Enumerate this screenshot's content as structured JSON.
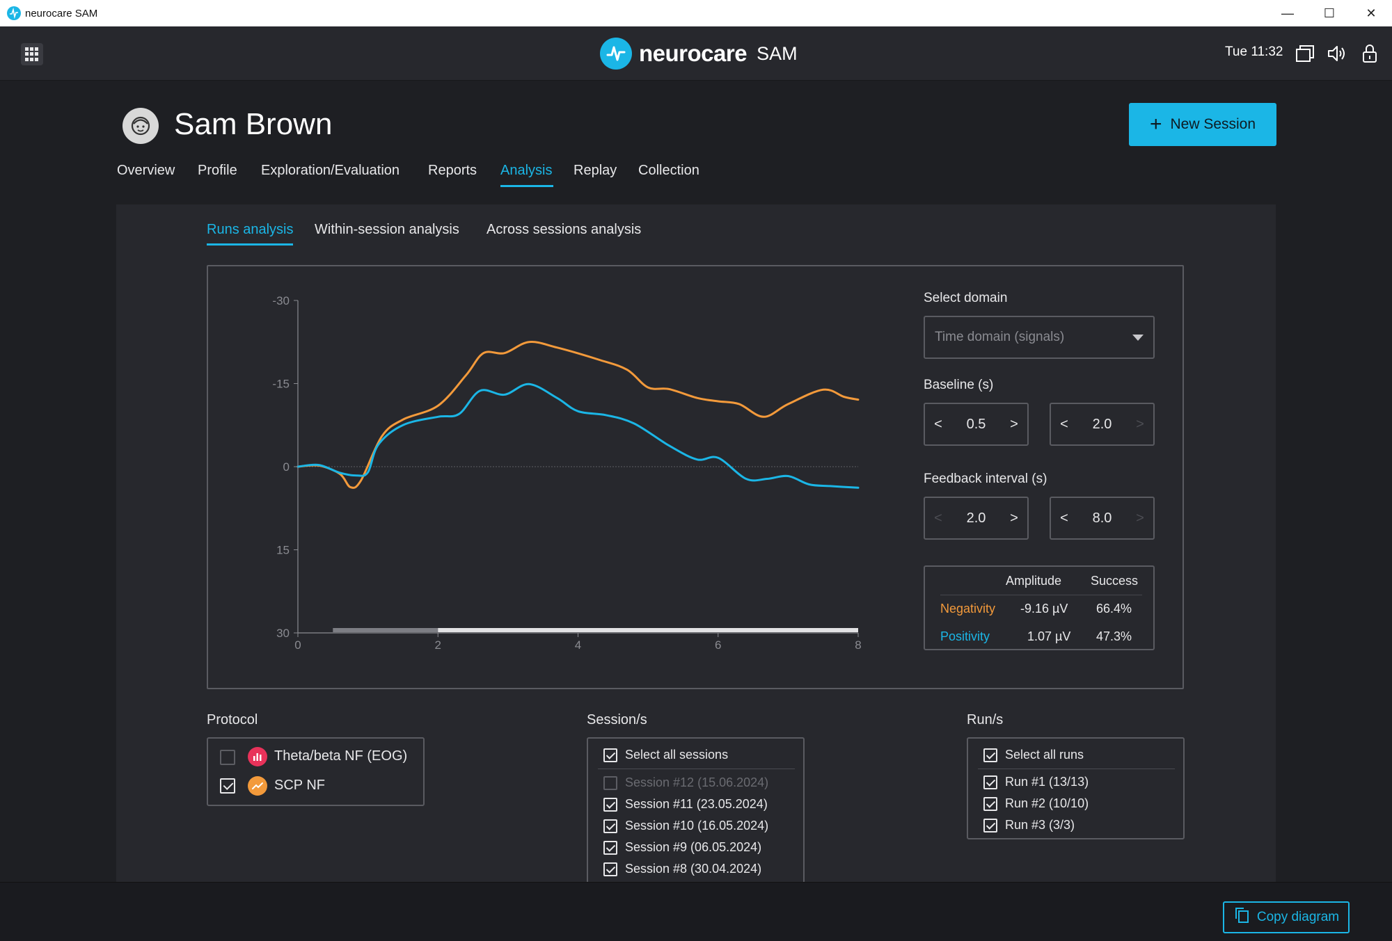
{
  "window": {
    "title": "neurocare SAM",
    "minimize": "—",
    "maximize": "☐",
    "close": "✕"
  },
  "header": {
    "brand": "neurocare",
    "product": "SAM",
    "clock": "Tue 11:32"
  },
  "patient": {
    "name": "Sam Brown"
  },
  "actions": {
    "new_session": "New Session",
    "copy_diagram": "Copy diagram"
  },
  "nav": {
    "tabs": [
      {
        "label": "Overview"
      },
      {
        "label": "Profile"
      },
      {
        "label": "Exploration/Evaluation"
      },
      {
        "label": "Reports"
      },
      {
        "label": "Analysis"
      },
      {
        "label": "Replay"
      },
      {
        "label": "Collection"
      }
    ],
    "active": "Analysis"
  },
  "subnav": {
    "tabs": [
      {
        "label": "Runs analysis"
      },
      {
        "label": "Within-session analysis"
      },
      {
        "label": "Across sessions analysis"
      }
    ],
    "active": "Runs analysis"
  },
  "controls": {
    "domain_label": "Select domain",
    "domain_value": "Time domain (signals)",
    "baseline_label": "Baseline (s)",
    "baseline_start": "0.5",
    "baseline_end": "2.0",
    "feedback_label": "Feedback interval (s)",
    "feedback_start": "2.0",
    "feedback_end": "8.0",
    "prev": "<",
    "next": ">"
  },
  "stats": {
    "col_amplitude": "Amplitude",
    "col_success": "Success",
    "rows": [
      {
        "label": "Negativity",
        "amplitude": "-9.16 µV",
        "success": "66.4%",
        "color": "#f39a3b"
      },
      {
        "label": "Positivity",
        "amplitude": "1.07 µV",
        "success": "47.3%",
        "color": "#1bb6e6"
      }
    ]
  },
  "protocol": {
    "title": "Protocol",
    "items": [
      {
        "label": "Theta/beta NF (EOG)",
        "checked": false,
        "color": "#e8325a"
      },
      {
        "label": "SCP NF",
        "checked": true,
        "color": "#f39a3b"
      }
    ]
  },
  "sessions": {
    "title": "Session/s",
    "select_all": "Select all sessions",
    "items": [
      {
        "label": "Session #12 (15.06.2024)",
        "checked": false
      },
      {
        "label": "Session #11 (23.05.2024)",
        "checked": true
      },
      {
        "label": "Session #10 (16.05.2024)",
        "checked": true
      },
      {
        "label": "Session #9 (06.05.2024)",
        "checked": true
      },
      {
        "label": "Session #8 (30.04.2024)",
        "checked": true
      }
    ]
  },
  "runs": {
    "title": "Run/s",
    "select_all": "Select all runs",
    "items": [
      {
        "label": "Run #1 (13/13)",
        "checked": true
      },
      {
        "label": "Run #2 (10/10)",
        "checked": true
      },
      {
        "label": "Run #3 (3/3)",
        "checked": true
      }
    ]
  },
  "chart_data": {
    "type": "line",
    "title": "",
    "xlabel": "",
    "ylabel": "",
    "xlim": [
      0,
      8
    ],
    "ylim": [
      -30,
      30
    ],
    "y_inverted": true,
    "x_ticks": [
      "0",
      "2",
      "4",
      "6",
      "8"
    ],
    "y_ticks": [
      "-30",
      "-15",
      "0",
      "15",
      "30"
    ],
    "x_tick_values": [
      0,
      2,
      4,
      6,
      8
    ],
    "y_tick_values": [
      -30,
      -15,
      0,
      15,
      30
    ],
    "baseline_interval": [
      0.5,
      2.0
    ],
    "feedback_interval": [
      2.0,
      8.0
    ],
    "series": [
      {
        "color": "#f39a3b",
        "x": [
          0,
          0.3,
          0.6,
          0.75,
          0.9,
          1.2,
          1.5,
          2.0,
          2.4,
          2.65,
          2.95,
          3.3,
          3.7,
          4.3,
          4.7,
          5.0,
          5.3,
          5.7,
          6.0,
          6.3,
          6.65,
          7.0,
          7.5,
          7.8,
          8.0
        ],
        "y": [
          0,
          -0.2,
          1.3,
          3.7,
          2.5,
          -5.5,
          -8.5,
          -11,
          -16.5,
          -20.5,
          -20.5,
          -22.5,
          -21.5,
          -19.3,
          -17.5,
          -14.3,
          -14,
          -12.4,
          -11.8,
          -11.3,
          -9,
          -11.3,
          -13.9,
          -12.6,
          -12.1
        ]
      },
      {
        "color": "#1bb6e6",
        "x": [
          0,
          0.3,
          0.6,
          0.85,
          1.0,
          1.15,
          1.5,
          2.0,
          2.3,
          2.6,
          2.95,
          3.3,
          3.7,
          4.0,
          4.4,
          4.8,
          5.3,
          5.7,
          6.0,
          6.4,
          6.7,
          7.0,
          7.3,
          7.6,
          8.0
        ],
        "y": [
          0,
          -0.3,
          1.1,
          1.6,
          1.0,
          -4,
          -7.5,
          -9,
          -9.5,
          -13.7,
          -13,
          -14.9,
          -12.4,
          -10,
          -9.3,
          -7.8,
          -3.8,
          -1.3,
          -1.6,
          2.2,
          2.2,
          1.7,
          3.2,
          3.5,
          3.8
        ]
      }
    ]
  }
}
